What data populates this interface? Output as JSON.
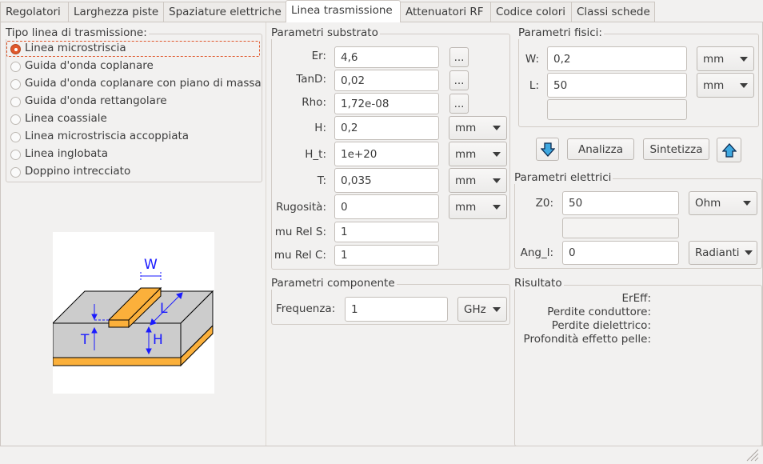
{
  "tabs": [
    "Regolatori",
    "Larghezza piste",
    "Spaziature elettriche",
    "Linea trasmissione",
    "Attenuatori RF",
    "Codice colori",
    "Classi schede"
  ],
  "active_tab": "Linea trasmissione",
  "line_type": {
    "title": "Tipo linea di trasmissione:",
    "options": [
      "Linea microstriscia",
      "Guida d'onda coplanare",
      "Guida d'onda coplanare con piano di massa",
      "Guida d'onda rettangolare",
      "Linea coassiale",
      "Linea microstriscia accoppiata",
      "Linea inglobata",
      "Doppino intrecciato"
    ],
    "selected": "Linea microstriscia"
  },
  "diagram": {
    "labels": {
      "w": "W",
      "l": "L",
      "t": "T",
      "h": "H"
    },
    "colors": {
      "substrate": "#cccccc",
      "copper": "#fbb03b",
      "dimension": "#1a1aff"
    }
  },
  "substrate": {
    "title": "Parametri substrato",
    "more_label": "...",
    "rows": [
      {
        "label": "Er:",
        "value": "4,6"
      },
      {
        "label": "TanD:",
        "value": "0,02"
      },
      {
        "label": "Rho:",
        "value": "1,72e-08"
      },
      {
        "label": "H:",
        "value": "0,2",
        "unit": "mm"
      },
      {
        "label": "H_t:",
        "value": "1e+20",
        "unit": "mm"
      },
      {
        "label": "T:",
        "value": "0,035",
        "unit": "mm"
      },
      {
        "label": "Rugosità:",
        "value": "0",
        "unit": "mm"
      },
      {
        "label": "mu Rel S:",
        "value": "1"
      },
      {
        "label": "mu Rel C:",
        "value": "1"
      }
    ]
  },
  "component": {
    "title": "Parametri componente",
    "freq_label": "Frequenza:",
    "freq_value": "1",
    "freq_unit": "GHz"
  },
  "physical": {
    "title": "Parametri fisici:",
    "w_label": "W:",
    "w_value": "0,2",
    "w_unit": "mm",
    "l_label": "L:",
    "l_value": "50",
    "l_unit": "mm",
    "extra_value": ""
  },
  "actions": {
    "analyze": "Analizza",
    "synthesize": "Sintetizza"
  },
  "electrical": {
    "title": "Parametri elettrici",
    "z0_label": "Z0:",
    "z0_value": "50",
    "z0_unit": "Ohm",
    "extra_value": "",
    "ang_label": "Ang_l:",
    "ang_value": "0",
    "ang_unit": "Radianti"
  },
  "result": {
    "title": "Risultato",
    "labels": [
      "ErEff:",
      "Perdite conduttore:",
      "Perdite dielettrico:",
      "Profondità effetto pelle:"
    ]
  }
}
